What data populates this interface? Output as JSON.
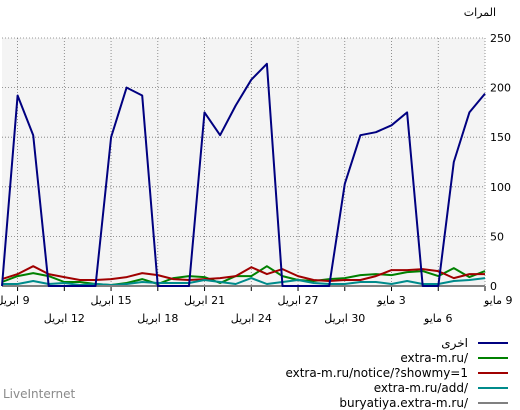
{
  "chart_data": {
    "type": "line",
    "ylabel": "المرات",
    "ylim": [
      0,
      250
    ],
    "yticks": [
      0,
      50,
      100,
      150,
      200,
      250
    ],
    "xticks_row1": [
      "9 مايو",
      "3 مايو",
      "27 ابريل",
      "21 ابريل",
      "15 ابريل",
      "9 ابريل"
    ],
    "xticks_row2": [
      "6 مايو",
      "30 ابريل",
      "24 ابريل",
      "18 ابريل",
      "12 ابريل"
    ],
    "grid": true,
    "x_direction": "reversed",
    "n_points": 32,
    "series": [
      {
        "name": "اخرى",
        "color": "#000080",
        "values": [
          194,
          175,
          125,
          0,
          0,
          175,
          162,
          155,
          152,
          103,
          0,
          0,
          0,
          0,
          224,
          208,
          182,
          152,
          175,
          0,
          0,
          0,
          192,
          200,
          150,
          0,
          0,
          0,
          0,
          152,
          192,
          0
        ]
      },
      {
        "name": "extra-m.ru/",
        "color": "#008000",
        "values": [
          15,
          9,
          18,
          10,
          15,
          14,
          11,
          12,
          11,
          8,
          7,
          5,
          6,
          10,
          20,
          10,
          10,
          3,
          9,
          10,
          8,
          2,
          7,
          3,
          1,
          2,
          4,
          4,
          10,
          13,
          10,
          4
        ]
      },
      {
        "name": "extra-m.ru/notice/?showmy=1",
        "color": "#a00000",
        "values": [
          12,
          12,
          8,
          15,
          17,
          16,
          16,
          10,
          6,
          6,
          5,
          6,
          10,
          17,
          12,
          19,
          10,
          8,
          7,
          6,
          7,
          11,
          13,
          9,
          7,
          6,
          6,
          9,
          12,
          20,
          12,
          7
        ]
      },
      {
        "name": "extra-m.ru/add/",
        "color": "#008b8b",
        "values": [
          8,
          6,
          5,
          2,
          2,
          5,
          2,
          4,
          4,
          2,
          2,
          3,
          6,
          4,
          2,
          8,
          2,
          4,
          6,
          3,
          3,
          3,
          4,
          2,
          1,
          2,
          1,
          3,
          2,
          5,
          2,
          2
        ]
      },
      {
        "name": "buryatiya.extra-m.ru/",
        "color": "#808080",
        "values": [
          0,
          0,
          0,
          0,
          0,
          0,
          0,
          0,
          0,
          0,
          0,
          0,
          0,
          0,
          0,
          0,
          0,
          0,
          0,
          0,
          0,
          0,
          0,
          0,
          0,
          0,
          0,
          0,
          0,
          0,
          0,
          0
        ]
      }
    ]
  },
  "branding": {
    "label": "LiveInternet"
  }
}
